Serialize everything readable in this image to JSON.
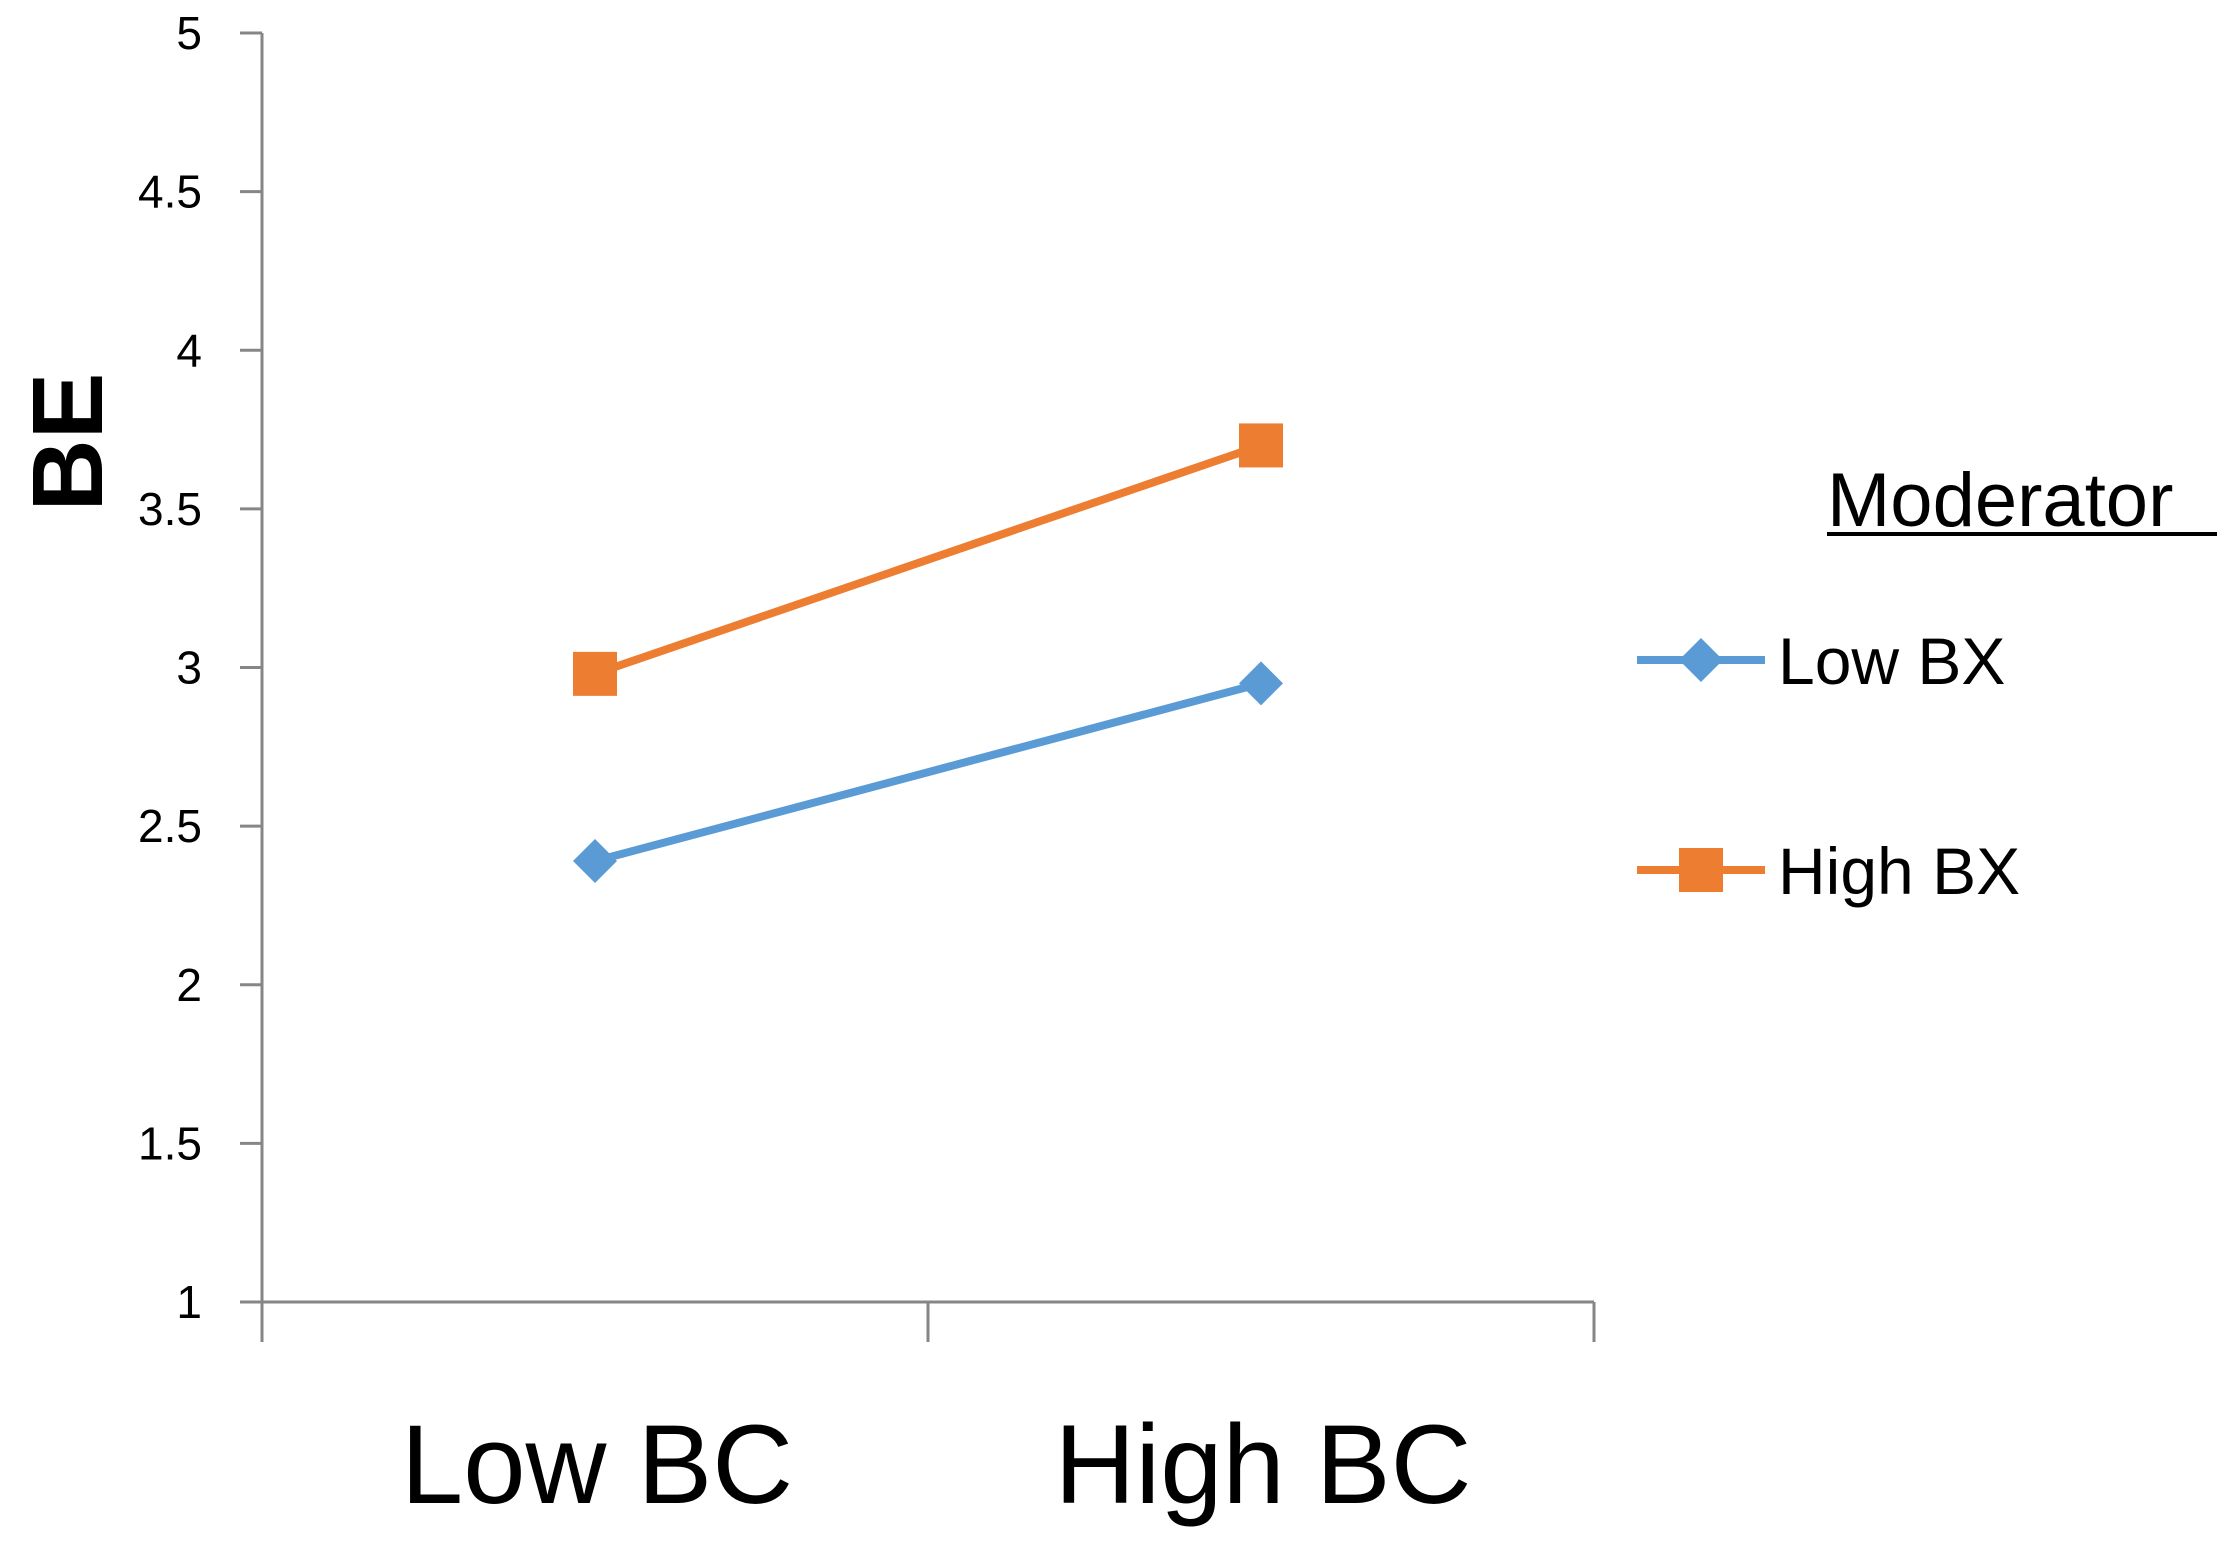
{
  "chart_data": {
    "type": "line",
    "title": "",
    "xlabel": "",
    "ylabel": "BE",
    "categories": [
      "Low BC",
      "High BC"
    ],
    "ylim": [
      1,
      5
    ],
    "yticks": [
      "1",
      "1.5",
      "2",
      "2.5",
      "3",
      "3.5",
      "4",
      "4.5",
      "5"
    ],
    "grid": false,
    "legend": {
      "title": "Moderator",
      "placement": "right"
    },
    "series": [
      {
        "name": "Low BX",
        "values": [
          2.39,
          2.95
        ],
        "color": "#5b9bd5",
        "marker": "diamond"
      },
      {
        "name": "High BX",
        "values": [
          2.98,
          3.7
        ],
        "color": "#ed7d31",
        "marker": "square"
      }
    ]
  }
}
